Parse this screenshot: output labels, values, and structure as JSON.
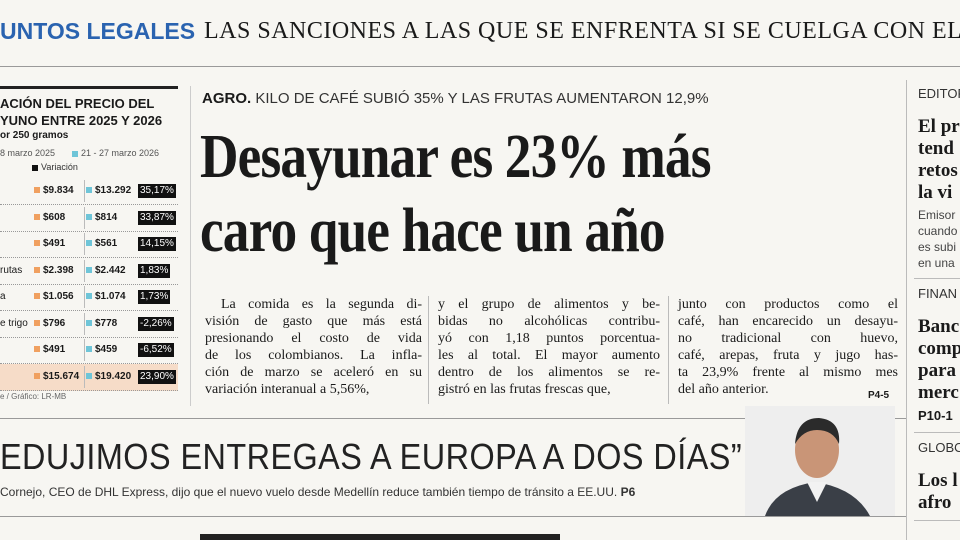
{
  "banner": {
    "section": "UNTOS LEGALES",
    "headline": "LAS SANCIONES A LAS QUE SE ENFRENTA SI SE CUELGA CON EL"
  },
  "table": {
    "title": [
      "ACIÓN DEL PRECIO DEL",
      "YUNO ENTRE 2025 Y 2026"
    ],
    "subtitle": "or 250 gramos",
    "legend": [
      "8 marzo 2025",
      "21 - 27 marzo 2026",
      "Variación"
    ],
    "rows": [
      [
        "",
        "$9.834",
        "$13.292",
        "35,17%"
      ],
      [
        "",
        "$608",
        "$814",
        "33,87%"
      ],
      [
        "",
        "$491",
        "$561",
        "14,15%"
      ],
      [
        "rutas",
        "$2.398",
        "$2.442",
        "1,83%"
      ],
      [
        "a",
        "$1.056",
        "$1.074",
        "1,73%"
      ],
      [
        "e trigo",
        "$796",
        "$778",
        "-2,26%"
      ],
      [
        "",
        "$491",
        "$459",
        "-6,52%"
      ],
      [
        "",
        "$15.674",
        "$19.420",
        "23,90%"
      ]
    ],
    "source": "e / Gráfico: LR-MB"
  },
  "article": {
    "kicker": "AGRO.",
    "deck": "KILO DE CAFÉ SUBIÓ 35% Y LAS FRUTAS AUMENTARON 12,9%",
    "headline": [
      "Desayunar es 23% más",
      "caro que hace un año"
    ],
    "columns": [
      [
        "La comida es la segunda di-",
        "visión de gasto que más está",
        "presionando el costo de vida",
        "de los colombianos. La infla-",
        "ción de marzo se aceleró en su",
        "variación interanual a 5,56%,"
      ],
      [
        "y el grupo de alimentos y be-",
        "bidas no alcohólicas contribu-",
        "yó con 1,18 puntos porcentua-",
        "les al total. El mayor aumento",
        "dentro de los alimentos se re-",
        "gistró en las frutas frescas que,"
      ],
      [
        "junto con productos como el",
        "café, han encarecido un desayu-",
        "no tradicional con huevo,",
        "café, arepas, fruta y jugo has-",
        "ta 23,9% frente al mismo mes",
        "del año anterior."
      ]
    ],
    "page": "P4-5"
  },
  "sidebar": {
    "sections": [
      {
        "label": "EDITOR",
        "headline": [
          "El pr",
          "tend",
          "retos",
          "la vi"
        ],
        "body": [
          "Emisor",
          "cuando",
          "es subi",
          "en una"
        ]
      },
      {
        "label": "FINAN",
        "headline": [
          "Banc",
          "comp",
          "para",
          "merc"
        ],
        "page": "P10-1"
      },
      {
        "label": "GLOBO",
        "headline": [
          "Los l",
          "afro"
        ]
      }
    ]
  },
  "quote": {
    "text": "EDUJIMOS ENTREGAS A EUROPA A DOS DÍAS”",
    "caption": "Cornejo, CEO de DHL Express, dijo que el nuevo vuelo desde Medellín reduce también tiempo de tránsito a EE.UU.",
    "page": "P6"
  }
}
